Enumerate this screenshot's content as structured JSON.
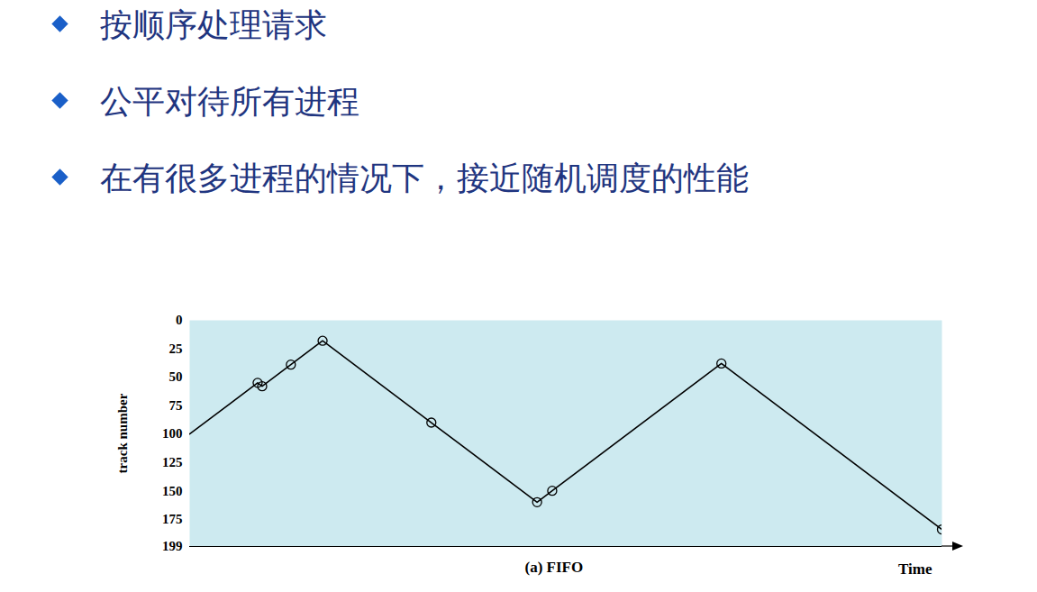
{
  "bullets": [
    "按顺序处理请求",
    "公平对待所有进程",
    "在有很多进程的情况下，接近随机调度的性能"
  ],
  "chart_data": {
    "type": "line",
    "caption": "(a) FIFO",
    "xlabel": "Time",
    "ylabel": "track number",
    "x": [
      0,
      45,
      48,
      67,
      88,
      160,
      230,
      240,
      352,
      498
    ],
    "values": [
      100,
      55,
      58,
      39,
      18,
      90,
      160,
      150,
      38,
      184
    ],
    "xlim": [
      0,
      498
    ],
    "ylim": [
      0,
      199
    ],
    "yticks": [
      0,
      25,
      50,
      75,
      100,
      125,
      150,
      175,
      199
    ],
    "tick_labels": "y",
    "marker": "circle",
    "color": "#000000",
    "grid": false
  }
}
